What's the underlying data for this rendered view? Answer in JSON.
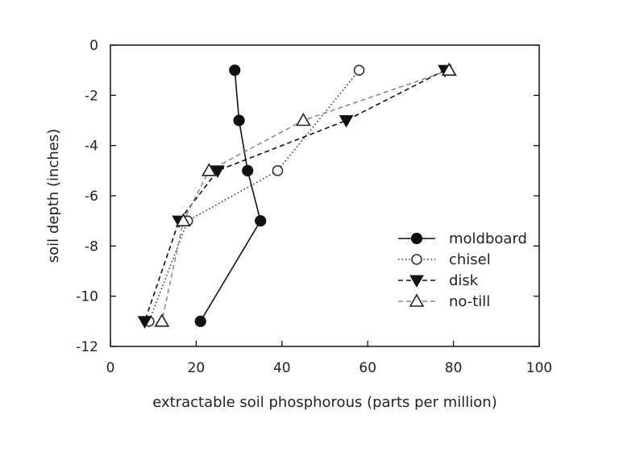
{
  "chart_data": {
    "type": "line",
    "title": "",
    "xlabel": "extractable soil phosphorous (parts per million)",
    "ylabel": "soil depth (inches)",
    "xlim": [
      0,
      100
    ],
    "ylim": [
      -12,
      0
    ],
    "xticks": [
      0,
      20,
      40,
      60,
      80,
      100
    ],
    "yticks": [
      0,
      -2,
      -4,
      -6,
      -8,
      -10,
      -12
    ],
    "grid": false,
    "legend_position": "lower-right",
    "series": [
      {
        "name": "moldboard",
        "marker": "filled-circle",
        "line": "solid",
        "color": "#111111",
        "x": [
          29,
          30,
          32,
          35,
          21
        ],
        "y": [
          -1,
          -3,
          -5,
          -7,
          -11
        ]
      },
      {
        "name": "chisel",
        "marker": "open-circle",
        "line": "dotted",
        "color": "#333333",
        "x": [
          58,
          39,
          18,
          9
        ],
        "y": [
          -1,
          -5,
          -7,
          -11
        ]
      },
      {
        "name": "disk",
        "marker": "filled-triangle-down",
        "line": "dashed",
        "color": "#111111",
        "x": [
          78,
          55,
          25,
          16,
          8
        ],
        "y": [
          -1,
          -3,
          -5,
          -7,
          -11
        ]
      },
      {
        "name": "no-till",
        "marker": "open-triangle-up",
        "line": "dashed",
        "color": "#8c8c8c",
        "x": [
          79,
          45,
          23,
          17,
          12
        ],
        "y": [
          -1,
          -3,
          -5,
          -7,
          -11
        ]
      }
    ]
  }
}
